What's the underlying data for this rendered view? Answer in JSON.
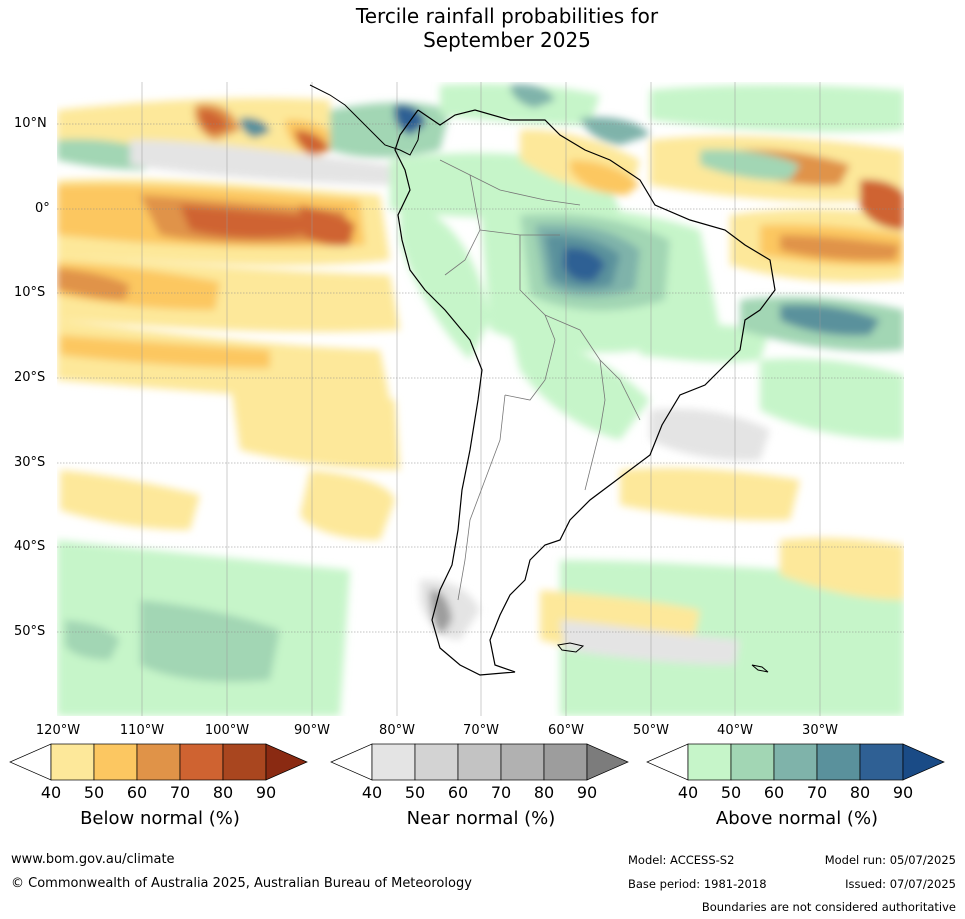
{
  "title_line1": "Tercile rainfall probabilities for",
  "title_line2": "September 2025",
  "lat_labels": [
    "10°N",
    "0°",
    "10°S",
    "20°S",
    "30°S",
    "40°S",
    "50°S"
  ],
  "lon_labels": [
    "120°W",
    "110°W",
    "100°W",
    "90°W",
    "80°W",
    "70°W",
    "60°W",
    "50°W",
    "40°W",
    "30°W"
  ],
  "colorbars": [
    {
      "title": "Below normal (%)",
      "ticks": [
        "40",
        "50",
        "60",
        "70",
        "80",
        "90"
      ],
      "colors": [
        "#ffffff",
        "#fde89a",
        "#fcc761",
        "#e09348",
        "#cf6331",
        "#a9461f",
        "#8a2a12"
      ]
    },
    {
      "title": "Near normal (%)",
      "ticks": [
        "40",
        "50",
        "60",
        "70",
        "80",
        "90"
      ],
      "colors": [
        "#ffffff",
        "#e4e4e4",
        "#d3d3d3",
        "#c3c3c3",
        "#b1b1b1",
        "#9d9d9d",
        "#7c7c7c"
      ]
    },
    {
      "title": "Above normal (%)",
      "ticks": [
        "40",
        "50",
        "60",
        "70",
        "80",
        "90"
      ],
      "colors": [
        "#ffffff",
        "#c6f5c9",
        "#a2d6b4",
        "#7fb3aa",
        "#5a919c",
        "#2f6094",
        "#1a4b86"
      ]
    }
  ],
  "footer": {
    "website": "www.bom.gov.au/climate",
    "copyright": "© Commonwealth of Australia 2025, Australian Bureau of Meteorology",
    "model": "Model: ACCESS-S2",
    "base_period": "Base period: 1981-2018",
    "model_run": "Model run: 05/07/2025",
    "issued": "Issued: 07/07/2025",
    "disclaimer": "Boundaries are not considered authoritative"
  }
}
